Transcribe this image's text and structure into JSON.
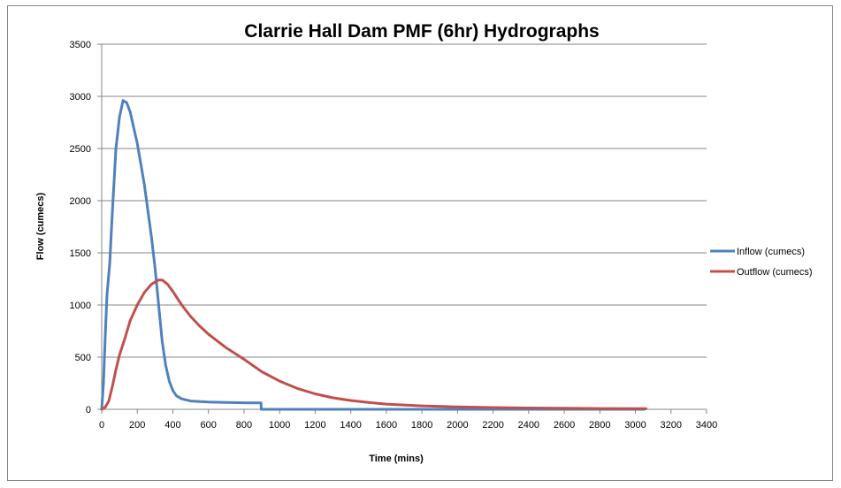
{
  "chart_data": {
    "type": "line",
    "title": "Clarrie Hall Dam PMF (6hr) Hydrographs",
    "xlabel": "Time (mins)",
    "ylabel": "Flow (cumecs)",
    "xlim": [
      0,
      3400
    ],
    "ylim": [
      0,
      3500
    ],
    "xticks": [
      0,
      200,
      400,
      600,
      800,
      1000,
      1200,
      1400,
      1600,
      1800,
      2000,
      2200,
      2400,
      2600,
      2800,
      3000,
      3200,
      3400
    ],
    "yticks": [
      0,
      500,
      1000,
      1500,
      2000,
      2500,
      3000,
      3500
    ],
    "xtick_labels": [
      "0",
      "200",
      "400",
      "600",
      "800",
      "1000",
      "1200",
      "1400",
      "1600",
      "1800",
      "2000",
      "2200",
      "2400",
      "2600",
      "2800",
      "3000",
      "3200",
      "3400"
    ],
    "ytick_labels": [
      "0",
      "500",
      "1000",
      "1500",
      "2000",
      "2500",
      "3000",
      "3500"
    ],
    "grid": "horizontal",
    "legend_position": "right",
    "series": [
      {
        "name": "Inflow (cumecs)",
        "color": "#4F81BD",
        "points": [
          [
            0,
            0
          ],
          [
            10,
            250
          ],
          [
            20,
            700
          ],
          [
            30,
            1100
          ],
          [
            45,
            1400
          ],
          [
            60,
            1900
          ],
          [
            80,
            2500
          ],
          [
            100,
            2800
          ],
          [
            120,
            2960
          ],
          [
            140,
            2940
          ],
          [
            160,
            2850
          ],
          [
            180,
            2700
          ],
          [
            200,
            2550
          ],
          [
            220,
            2350
          ],
          [
            240,
            2150
          ],
          [
            260,
            1900
          ],
          [
            280,
            1650
          ],
          [
            300,
            1350
          ],
          [
            320,
            1000
          ],
          [
            340,
            650
          ],
          [
            360,
            420
          ],
          [
            380,
            270
          ],
          [
            400,
            180
          ],
          [
            420,
            130
          ],
          [
            450,
            100
          ],
          [
            500,
            80
          ],
          [
            600,
            70
          ],
          [
            700,
            65
          ],
          [
            800,
            63
          ],
          [
            895,
            62
          ],
          [
            897,
            0
          ],
          [
            1000,
            0
          ],
          [
            1500,
            0
          ],
          [
            2000,
            0
          ],
          [
            2500,
            0
          ],
          [
            3050,
            0
          ]
        ]
      },
      {
        "name": "Outflow (cumecs)",
        "color": "#C0504D",
        "points": [
          [
            0,
            0
          ],
          [
            20,
            20
          ],
          [
            40,
            80
          ],
          [
            60,
            220
          ],
          [
            80,
            380
          ],
          [
            100,
            520
          ],
          [
            130,
            680
          ],
          [
            160,
            850
          ],
          [
            200,
            1000
          ],
          [
            240,
            1120
          ],
          [
            280,
            1200
          ],
          [
            320,
            1240
          ],
          [
            340,
            1240
          ],
          [
            370,
            1200
          ],
          [
            400,
            1130
          ],
          [
            450,
            1000
          ],
          [
            500,
            890
          ],
          [
            550,
            800
          ],
          [
            600,
            720
          ],
          [
            700,
            590
          ],
          [
            800,
            480
          ],
          [
            900,
            360
          ],
          [
            1000,
            270
          ],
          [
            1100,
            200
          ],
          [
            1200,
            148
          ],
          [
            1300,
            110
          ],
          [
            1400,
            85
          ],
          [
            1500,
            65
          ],
          [
            1600,
            50
          ],
          [
            1800,
            33
          ],
          [
            2000,
            23
          ],
          [
            2200,
            17
          ],
          [
            2400,
            13
          ],
          [
            2600,
            10
          ],
          [
            2800,
            8
          ],
          [
            3060,
            6
          ]
        ]
      }
    ]
  }
}
